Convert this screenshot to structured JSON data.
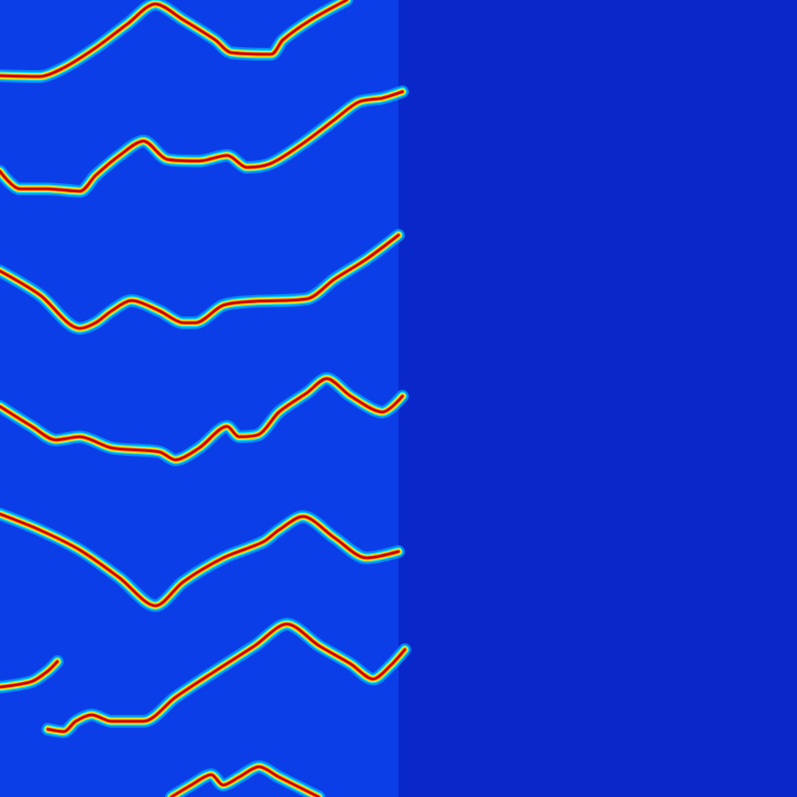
{
  "chart_data": {
    "type": "line",
    "color": "#c80000",
    "line_style": "solid",
    "xlim": [
      0,
      1000
    ],
    "ylim": [
      0,
      1000
    ],
    "tick_labels": false,
    "grid": false,
    "series": [
      {
        "x": [
          0,
          50,
          80,
          120,
          160,
          195,
          230,
          270,
          290,
          340,
          355,
          390,
          435
        ],
        "values": [
          905,
          904,
          915,
          940,
          970,
          995,
          975,
          950,
          934,
          932,
          950,
          975,
          1000
        ]
      },
      {
        "x": [
          0,
          25,
          60,
          100,
          120,
          150,
          180,
          210,
          250,
          285,
          310,
          340,
          380,
          420,
          450,
          480,
          505
        ],
        "values": [
          785,
          763,
          763,
          760,
          780,
          805,
          823,
          800,
          798,
          805,
          790,
          795,
          820,
          850,
          872,
          877,
          885
        ]
      },
      {
        "x": [
          0,
          50,
          100,
          120,
          140,
          165,
          200,
          230,
          245,
          280,
          320,
          385,
          420,
          460,
          500
        ],
        "values": [
          660,
          630,
          588,
          595,
          610,
          623,
          610,
          595,
          595,
          617,
          622,
          625,
          650,
          675,
          705
        ]
      },
      {
        "x": [
          0,
          40,
          70,
          100,
          140,
          200,
          220,
          250,
          285,
          300,
          325,
          350,
          385,
          410,
          440,
          480,
          505
        ],
        "values": [
          490,
          465,
          448,
          452,
          438,
          433,
          423,
          438,
          465,
          452,
          455,
          483,
          507,
          525,
          503,
          483,
          503
        ]
      },
      {
        "x": [
          0,
          50,
          100,
          150,
          195,
          230,
          280,
          330,
          350,
          380,
          420,
          460,
          500
        ],
        "values": [
          355,
          335,
          310,
          275,
          240,
          270,
          300,
          320,
          335,
          352,
          325,
          300,
          308
        ]
      },
      {
        "x": [
          0,
          40,
          60,
          72
        ],
        "values": [
          138,
          145,
          158,
          170
        ]
      },
      {
        "x": [
          60,
          80,
          95,
          115,
          140,
          180,
          220,
          270,
          320,
          360,
          400,
          440,
          468,
          490,
          508
        ],
        "values": [
          85,
          82,
          95,
          103,
          95,
          95,
          125,
          158,
          190,
          217,
          190,
          167,
          148,
          165,
          185
        ]
      },
      {
        "x": [
          215,
          240,
          265,
          280,
          300,
          325,
          350,
          380,
          400
        ],
        "values": [
          0,
          15,
          28,
          15,
          25,
          38,
          25,
          10,
          0
        ]
      }
    ]
  }
}
